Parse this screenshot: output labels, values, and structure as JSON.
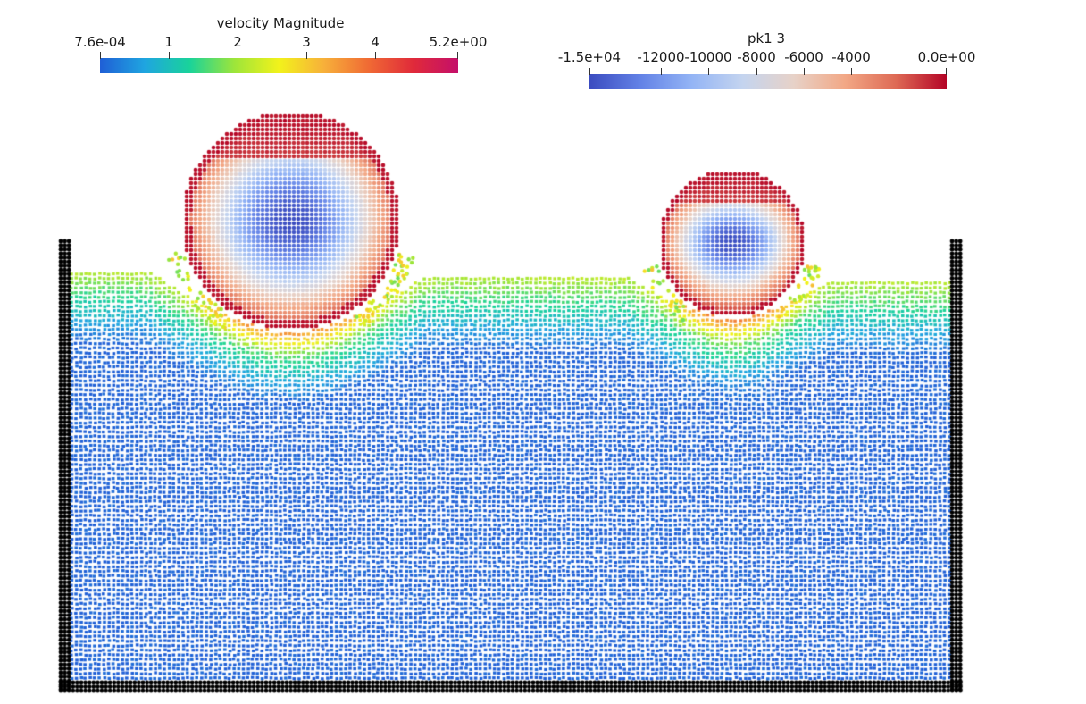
{
  "velocity_legend": {
    "title": "velocity Magnitude",
    "ticks": [
      "7.6e-04",
      "1",
      "2",
      "3",
      "4",
      "5.2e+00"
    ],
    "gradient": [
      "#1f5fd6",
      "#1fa5e0",
      "#19d39a",
      "#9de53a",
      "#f2f21b",
      "#f7b03a",
      "#f06a34",
      "#e02a3a",
      "#c40f6a"
    ]
  },
  "pressure_legend": {
    "title": "pk1 3",
    "ticks": [
      "-1.5e+04",
      "-12000",
      "-10000",
      "-8000",
      "-6000",
      "-4000",
      "0.0e+00"
    ],
    "gradient": [
      "#3b4cc0",
      "#6382e6",
      "#93b4f5",
      "#c4d4ef",
      "#e7d2c8",
      "#f2a886",
      "#de6a55",
      "#b40426"
    ]
  },
  "colors": {
    "fluid_deep": "#1266e3",
    "fluid_mid": "#16a9d0",
    "fluid_surface": "#2ccf7a",
    "wall": "#000000",
    "ball_cold": "#3b4cc0",
    "ball_hot": "#b40426"
  }
}
